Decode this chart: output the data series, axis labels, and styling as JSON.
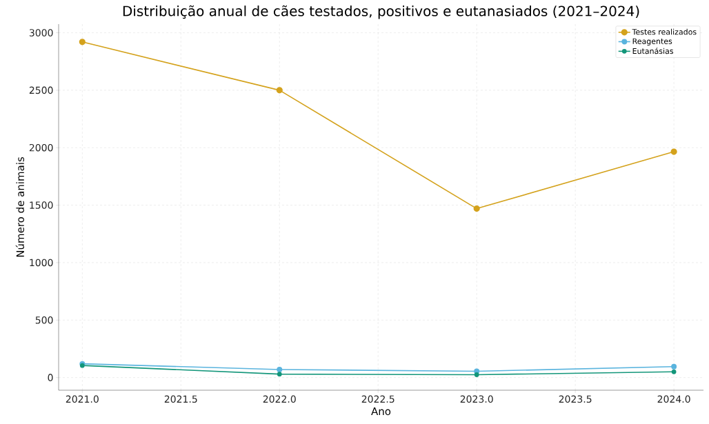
{
  "chart_data": {
    "type": "line",
    "title": "Distribuição anual de cães testados, positivos e eutanasiados (2021–2024)",
    "xlabel": "Ano",
    "ylabel": "Número de animais",
    "x": [
      2021,
      2022,
      2023,
      2024
    ],
    "series": [
      {
        "name": "Testes realizados",
        "color": "#d4a21c",
        "values": [
          2920,
          2500,
          1470,
          1965
        ]
      },
      {
        "name": "Reagentes",
        "color": "#5ab4de",
        "values": [
          120,
          70,
          55,
          95
        ]
      },
      {
        "name": "Eutanásias",
        "color": "#13967a",
        "values": [
          105,
          30,
          25,
          50
        ]
      }
    ],
    "xlim": [
      2020.88,
      2024.15
    ],
    "ylim": [
      -110,
      3075
    ],
    "xticks": [
      {
        "value": 2021,
        "label": "2021.0"
      },
      2021.5,
      {
        "value": 2022,
        "label": "2022.0"
      },
      2022.5,
      {
        "value": 2023,
        "label": "2023.0"
      },
      2023.5,
      {
        "value": 2024,
        "label": "2024.0"
      }
    ],
    "yticks": [
      0,
      500,
      1000,
      1500,
      2000,
      2500,
      3000
    ],
    "grid": true,
    "legend": "top right",
    "marker": "circle",
    "line_style": "solid"
  }
}
